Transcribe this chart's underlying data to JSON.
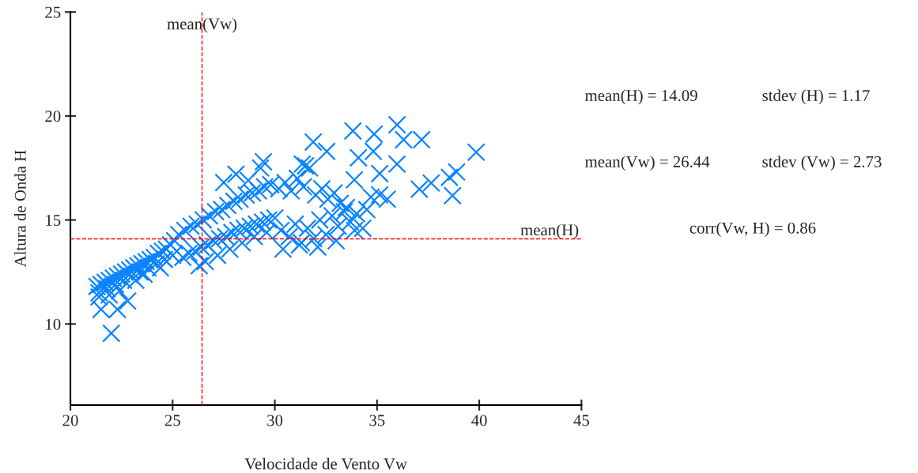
{
  "chart_data": {
    "type": "scatter",
    "xlabel": "Velocidade de Vento Vw",
    "ylabel": "Altura de Onda H",
    "xlim": [
      20,
      45
    ],
    "xticks": [
      20,
      25,
      30,
      35,
      40,
      45
    ],
    "ylim": [
      6.1,
      25
    ],
    "yticks": [
      10,
      15,
      20,
      25
    ],
    "marker": "cross",
    "grid": false,
    "ref_lines": [
      {
        "axis": "x",
        "value": 26.44,
        "label": "mean(Vw)",
        "color": "#ff0000",
        "line_style": "dashed"
      },
      {
        "axis": "y",
        "value": 14.09,
        "label": "mean(H)",
        "color": "#ff0000",
        "line_style": "dashed"
      }
    ],
    "annotations": [
      "mean(H) = 14.09",
      "stdev (H) = 1.17",
      "mean(Vw) = 26.44",
      "stdev (Vw) = 2.73",
      "corr(Vw, H) = 0.86"
    ],
    "series": [
      {
        "color": "#0a84ff",
        "x": [
          21.3,
          21.5,
          21.7,
          21.9,
          22.1,
          22.3,
          22.5,
          22.7,
          22.9,
          23.1,
          23.3,
          23.5,
          23.7,
          23.9,
          24.1,
          24.3,
          24.5,
          24.7,
          24.9,
          25.1,
          21.4,
          21.8,
          22.2,
          22.6,
          23.0,
          23.4,
          23.8,
          24.2,
          24.6,
          25.0,
          21.5,
          22.0,
          22.3,
          22.8,
          21.4,
          21.9,
          22.4,
          23.2,
          23.6,
          24.4,
          25.3,
          25.6,
          25.9,
          26.2,
          26.5,
          26.8,
          27.1,
          27.4,
          27.7,
          28.0,
          28.3,
          28.6,
          28.9,
          29.2,
          29.5,
          29.8,
          25.5,
          25.8,
          26.1,
          26.4,
          26.7,
          27.0,
          27.3,
          27.6,
          27.9,
          28.2,
          28.5,
          28.8,
          29.1,
          29.4,
          29.7,
          30.0,
          26.3,
          26.6,
          27.2,
          27.8,
          28.4,
          29.0,
          29.6,
          30.2,
          30.5,
          30.8,
          31.1,
          31.4,
          31.7,
          32.0,
          32.3,
          32.6,
          32.9,
          33.2,
          33.5,
          30.3,
          30.7,
          31.0,
          31.3,
          31.6,
          31.9,
          32.2,
          32.5,
          32.8,
          33.1,
          33.4,
          33.7,
          34.0,
          34.3,
          30.4,
          31.2,
          32.1,
          33.0,
          33.9,
          34.5,
          31.5,
          28.1,
          28.7,
          29.3,
          27.5,
          31.88,
          32.54,
          33.82,
          34.86,
          35.98,
          36.3,
          37.18,
          39.85,
          34.09,
          34.82,
          35.98,
          35.13,
          37.07,
          37.65,
          38.54,
          38.89,
          38.69,
          33.89,
          35.13,
          29.44,
          31.34,
          35.5,
          34.7
        ],
        "values": [
          11.8,
          11.9,
          12.0,
          12.1,
          12.2,
          12.3,
          12.4,
          12.5,
          12.6,
          12.7,
          12.8,
          12.9,
          13.0,
          13.1,
          13.2,
          13.4,
          13.5,
          13.6,
          13.8,
          14.0,
          11.5,
          11.7,
          11.9,
          12.1,
          12.3,
          12.5,
          12.7,
          12.9,
          13.1,
          13.3,
          10.7,
          9.55,
          10.7,
          11.1,
          11.3,
          11.4,
          11.6,
          12.1,
          12.4,
          12.7,
          14.3,
          14.5,
          14.7,
          14.8,
          15.0,
          15.2,
          15.4,
          15.5,
          15.7,
          15.9,
          16.0,
          16.2,
          16.3,
          16.4,
          16.6,
          16.7,
          13.2,
          13.4,
          13.5,
          13.7,
          13.8,
          14.0,
          14.1,
          14.2,
          14.4,
          14.5,
          14.6,
          14.7,
          14.8,
          14.9,
          15.0,
          15.1,
          12.8,
          13.0,
          13.3,
          13.6,
          13.9,
          14.2,
          14.4,
          16.5,
          16.8,
          16.4,
          17.0,
          16.6,
          17.5,
          16.2,
          16.5,
          16.0,
          16.3,
          15.8,
          15.6,
          14.5,
          14.2,
          14.8,
          13.9,
          14.6,
          14.1,
          15.0,
          14.3,
          15.2,
          14.7,
          15.4,
          14.9,
          15.3,
          14.6,
          13.6,
          13.8,
          13.7,
          14.0,
          14.5,
          15.5,
          17.6,
          17.2,
          16.9,
          17.5,
          16.8,
          18.75,
          18.3,
          19.28,
          19.13,
          19.58,
          18.86,
          18.86,
          18.26,
          17.99,
          18.3,
          17.69,
          17.23,
          16.48,
          16.78,
          17.05,
          17.31,
          16.17,
          16.93,
          16.21,
          17.8,
          17.69,
          16.0,
          16.1
        ]
      }
    ]
  }
}
